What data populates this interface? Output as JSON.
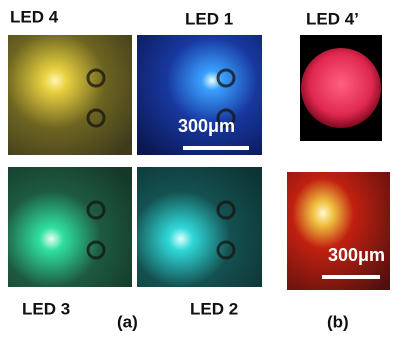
{
  "panel_a": {
    "labels": {
      "top_left": "LED 4",
      "top_right": "LED 1",
      "bottom_left": "LED 3",
      "bottom_right": "LED 2"
    },
    "scale_bar": "300μm",
    "caption": "(a)"
  },
  "panel_b": {
    "labels": {
      "top": "LED 4’"
    },
    "scale_bar": "300μm",
    "caption": "(b)"
  }
}
